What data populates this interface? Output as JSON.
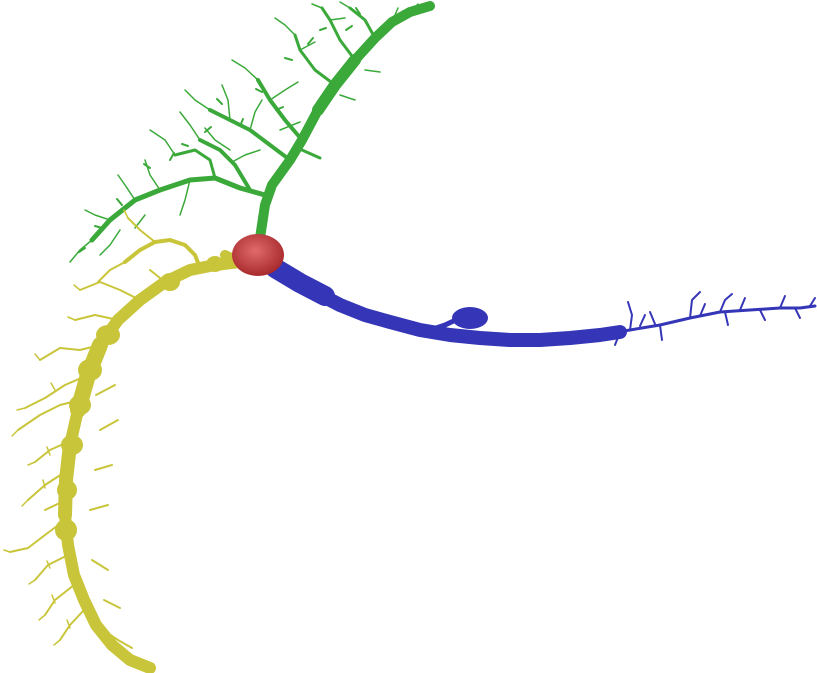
{
  "image": {
    "background": "#ffffff",
    "subject": "neuron-reconstruction",
    "segments": [
      {
        "name": "soma",
        "color": "#c0393b"
      },
      {
        "name": "apical-dendrite",
        "color": "#3aa93a"
      },
      {
        "name": "basal-dendrite",
        "color": "#c9c53a"
      },
      {
        "name": "axon",
        "color": "#3535b8"
      }
    ]
  }
}
